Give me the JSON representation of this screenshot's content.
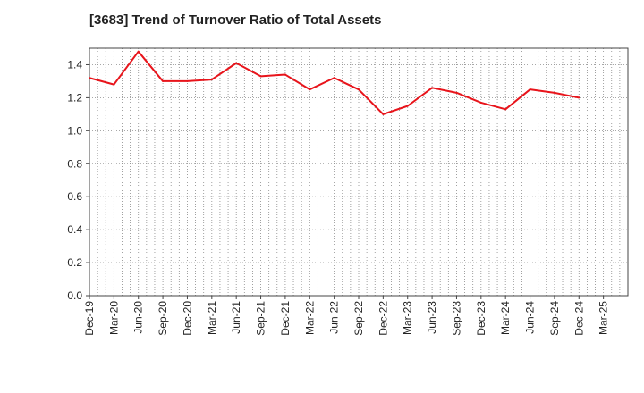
{
  "title": "[3683]  Trend of Turnover Ratio of Total Assets",
  "chart_data": {
    "type": "line",
    "title": "[3683]  Trend of Turnover Ratio of Total Assets",
    "xlabel": "",
    "ylabel": "",
    "ylim": [
      0,
      1.5
    ],
    "yticks": [
      "0.0",
      "0.2",
      "0.4",
      "0.6",
      "0.8",
      "1.0",
      "1.2",
      "1.4"
    ],
    "x_tick_labels": [
      "Dec-19",
      "Mar-20",
      "Jun-20",
      "Sep-20",
      "Dec-20",
      "Mar-21",
      "Jun-21",
      "Sep-21",
      "Dec-21",
      "Mar-22",
      "Jun-22",
      "Sep-22",
      "Dec-22",
      "Mar-23",
      "Jun-23",
      "Sep-23",
      "Dec-23",
      "Mar-24",
      "Jun-24",
      "Sep-24",
      "Dec-24",
      "Mar-25"
    ],
    "x": [
      "Dec-19",
      "Mar-20",
      "Jun-20",
      "Sep-20",
      "Dec-20",
      "Mar-21",
      "Jun-21",
      "Sep-21",
      "Dec-21",
      "Mar-22",
      "Jun-22",
      "Sep-22",
      "Dec-22",
      "Mar-23",
      "Jun-23",
      "Sep-23",
      "Dec-23",
      "Mar-24",
      "Jun-24",
      "Sep-24",
      "Dec-24"
    ],
    "series": [
      {
        "color": "#e8141b",
        "values": [
          1.32,
          1.28,
          1.48,
          1.3,
          1.3,
          1.31,
          1.41,
          1.33,
          1.34,
          1.25,
          1.32,
          1.25,
          1.1,
          1.15,
          1.26,
          1.23,
          1.17,
          1.13,
          1.25,
          1.23,
          1.2
        ]
      }
    ],
    "grid": true,
    "grid_style": "dotted",
    "legend": "none"
  }
}
